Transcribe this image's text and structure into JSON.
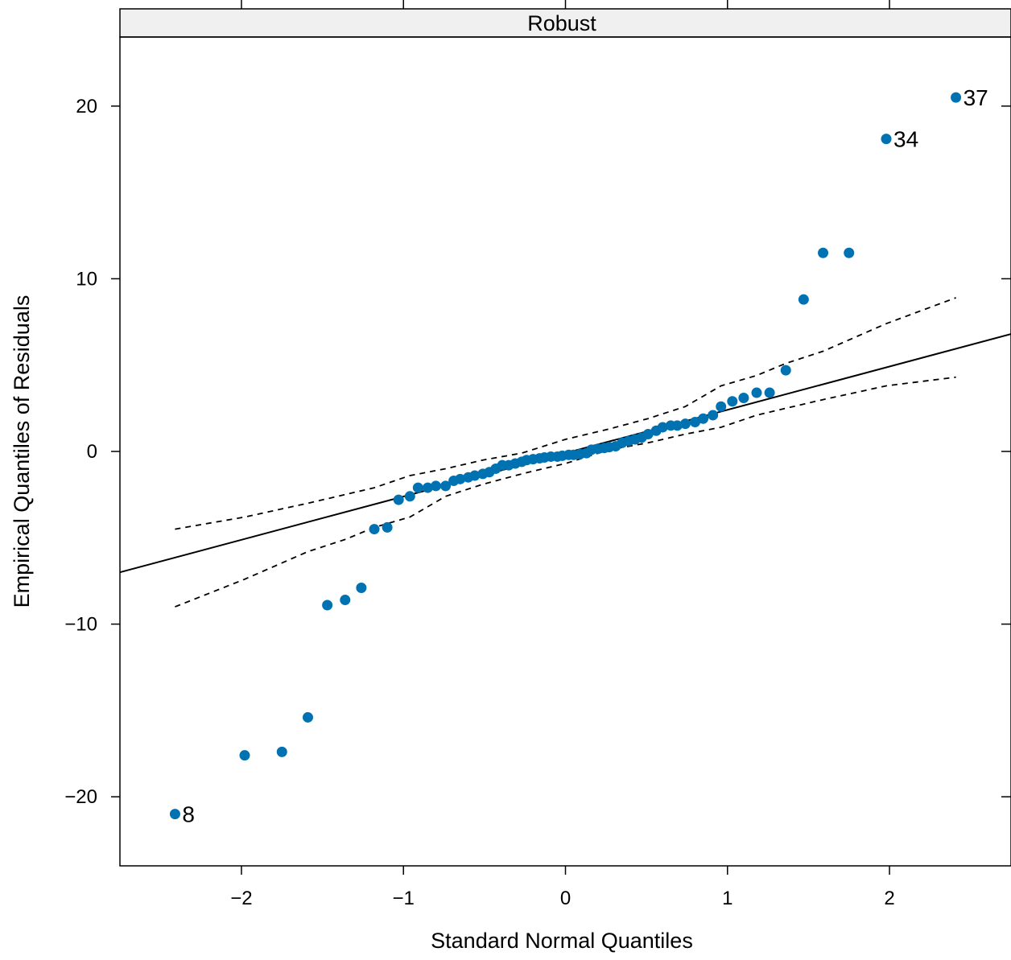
{
  "chart_data": {
    "type": "scatter",
    "title": "",
    "panel_label": "Robust",
    "xlabel": "Standard Normal Quantiles",
    "ylabel": "Empirical Quantiles of Residuals",
    "xlim": [
      -2.75,
      2.75
    ],
    "ylim": [
      -24,
      24
    ],
    "xticks": [
      -2,
      -1,
      0,
      1,
      2
    ],
    "xtick_labels": [
      "−2",
      "−1",
      "0",
      "1",
      "2"
    ],
    "yticks": [
      -20,
      -10,
      0,
      10,
      20
    ],
    "ytick_labels": [
      "−20",
      "−10",
      "0",
      "10",
      "20"
    ],
    "grid": false,
    "point_color": "#0072b2",
    "line_color": "#000000",
    "points": [
      {
        "x": -2.41,
        "y": -21.0,
        "label": "8"
      },
      {
        "x": -1.98,
        "y": -17.6
      },
      {
        "x": -1.75,
        "y": -17.4
      },
      {
        "x": -1.59,
        "y": -15.4
      },
      {
        "x": -1.47,
        "y": -8.9
      },
      {
        "x": -1.36,
        "y": -8.6
      },
      {
        "x": -1.26,
        "y": -7.9
      },
      {
        "x": -1.18,
        "y": -4.5
      },
      {
        "x": -1.1,
        "y": -4.4
      },
      {
        "x": -1.03,
        "y": -2.8
      },
      {
        "x": -0.96,
        "y": -2.6
      },
      {
        "x": -0.91,
        "y": -2.1
      },
      {
        "x": -0.85,
        "y": -2.1
      },
      {
        "x": -0.8,
        "y": -2.0
      },
      {
        "x": -0.74,
        "y": -2.0
      },
      {
        "x": -0.69,
        "y": -1.7
      },
      {
        "x": -0.65,
        "y": -1.6
      },
      {
        "x": -0.6,
        "y": -1.5
      },
      {
        "x": -0.56,
        "y": -1.4
      },
      {
        "x": -0.51,
        "y": -1.3
      },
      {
        "x": -0.47,
        "y": -1.2
      },
      {
        "x": -0.43,
        "y": -1.0
      },
      {
        "x": -0.39,
        "y": -0.8
      },
      {
        "x": -0.35,
        "y": -0.8
      },
      {
        "x": -0.31,
        "y": -0.7
      },
      {
        "x": -0.27,
        "y": -0.6
      },
      {
        "x": -0.24,
        "y": -0.5
      },
      {
        "x": -0.2,
        "y": -0.45
      },
      {
        "x": -0.16,
        "y": -0.4
      },
      {
        "x": -0.13,
        "y": -0.35
      },
      {
        "x": -0.09,
        "y": -0.3
      },
      {
        "x": -0.05,
        "y": -0.3
      },
      {
        "x": -0.02,
        "y": -0.25
      },
      {
        "x": 0.02,
        "y": -0.2
      },
      {
        "x": 0.05,
        "y": -0.2
      },
      {
        "x": 0.09,
        "y": -0.15
      },
      {
        "x": 0.13,
        "y": -0.1
      },
      {
        "x": 0.16,
        "y": 0.1
      },
      {
        "x": 0.2,
        "y": 0.15
      },
      {
        "x": 0.24,
        "y": 0.2
      },
      {
        "x": 0.27,
        "y": 0.25
      },
      {
        "x": 0.31,
        "y": 0.3
      },
      {
        "x": 0.35,
        "y": 0.5
      },
      {
        "x": 0.39,
        "y": 0.6
      },
      {
        "x": 0.43,
        "y": 0.7
      },
      {
        "x": 0.47,
        "y": 0.8
      },
      {
        "x": 0.51,
        "y": 1.0
      },
      {
        "x": 0.56,
        "y": 1.2
      },
      {
        "x": 0.6,
        "y": 1.4
      },
      {
        "x": 0.65,
        "y": 1.5
      },
      {
        "x": 0.69,
        "y": 1.5
      },
      {
        "x": 0.74,
        "y": 1.6
      },
      {
        "x": 0.8,
        "y": 1.7
      },
      {
        "x": 0.85,
        "y": 1.9
      },
      {
        "x": 0.91,
        "y": 2.1
      },
      {
        "x": 0.96,
        "y": 2.6
      },
      {
        "x": 1.03,
        "y": 2.9
      },
      {
        "x": 1.1,
        "y": 3.1
      },
      {
        "x": 1.18,
        "y": 3.4
      },
      {
        "x": 1.26,
        "y": 3.4
      },
      {
        "x": 1.36,
        "y": 4.7
      },
      {
        "x": 1.47,
        "y": 8.8
      },
      {
        "x": 1.59,
        "y": 11.5
      },
      {
        "x": 1.75,
        "y": 11.5
      },
      {
        "x": 1.98,
        "y": 18.1,
        "label": "34"
      },
      {
        "x": 2.41,
        "y": 20.5,
        "label": "37"
      }
    ],
    "reference_line": {
      "x": [
        -2.75,
        2.75
      ],
      "y": [
        -7.0,
        6.8
      ]
    },
    "envelope_upper": [
      {
        "x": -2.41,
        "y": -4.5
      },
      {
        "x": -1.98,
        "y": -3.8
      },
      {
        "x": -1.59,
        "y": -3.0
      },
      {
        "x": -1.36,
        "y": -2.5
      },
      {
        "x": -1.18,
        "y": -2.1
      },
      {
        "x": -0.96,
        "y": -1.4
      },
      {
        "x": -0.74,
        "y": -1.0
      },
      {
        "x": -0.51,
        "y": -0.5
      },
      {
        "x": -0.27,
        "y": -0.1
      },
      {
        "x": 0.0,
        "y": 0.7
      },
      {
        "x": 0.27,
        "y": 1.3
      },
      {
        "x": 0.51,
        "y": 1.9
      },
      {
        "x": 0.74,
        "y": 2.6
      },
      {
        "x": 0.96,
        "y": 3.8
      },
      {
        "x": 1.18,
        "y": 4.4
      },
      {
        "x": 1.36,
        "y": 5.1
      },
      {
        "x": 1.59,
        "y": 5.8
      },
      {
        "x": 1.98,
        "y": 7.4
      },
      {
        "x": 2.41,
        "y": 8.9
      }
    ],
    "envelope_lower": [
      {
        "x": -2.41,
        "y": -9.0
      },
      {
        "x": -1.98,
        "y": -7.4
      },
      {
        "x": -1.59,
        "y": -5.8
      },
      {
        "x": -1.36,
        "y": -5.1
      },
      {
        "x": -1.18,
        "y": -4.4
      },
      {
        "x": -0.96,
        "y": -3.8
      },
      {
        "x": -0.74,
        "y": -2.6
      },
      {
        "x": -0.51,
        "y": -1.9
      },
      {
        "x": -0.27,
        "y": -1.3
      },
      {
        "x": 0.0,
        "y": -0.7
      },
      {
        "x": 0.27,
        "y": 0.1
      },
      {
        "x": 0.51,
        "y": 0.5
      },
      {
        "x": 0.74,
        "y": 1.0
      },
      {
        "x": 0.96,
        "y": 1.4
      },
      {
        "x": 1.18,
        "y": 2.1
      },
      {
        "x": 1.36,
        "y": 2.5
      },
      {
        "x": 1.59,
        "y": 3.0
      },
      {
        "x": 1.98,
        "y": 3.8
      },
      {
        "x": 2.41,
        "y": 4.3
      }
    ]
  }
}
